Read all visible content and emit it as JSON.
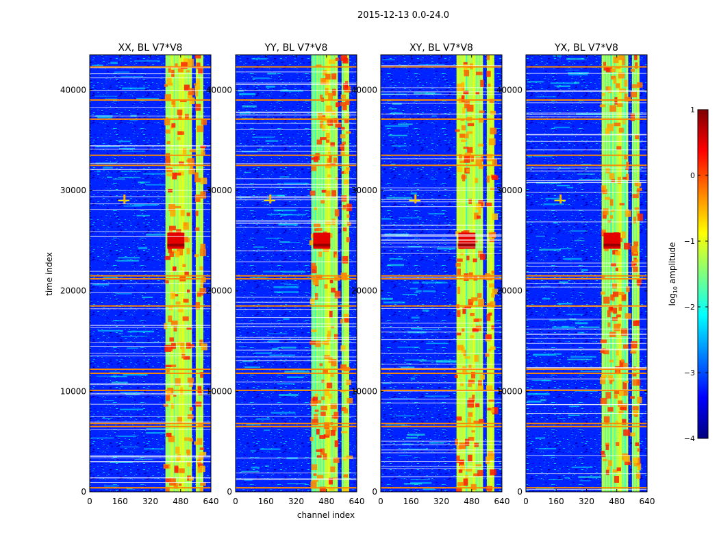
{
  "figure": {
    "suptitle": "2015-12-13 0.0-24.0",
    "xlabel": "channel index",
    "ylabel": "time index"
  },
  "colorbar": {
    "label_prefix": "log",
    "label_sub": "10",
    "label_suffix": " amplitude",
    "ticks": [
      1,
      0,
      -1,
      -2,
      -3,
      -4
    ],
    "tick_labels": [
      "1",
      "0",
      "−1",
      "−2",
      "−3",
      "−4"
    ],
    "range": [
      -4,
      1
    ],
    "colormap": "jet",
    "stops": [
      "#00007f",
      "#0000ff",
      "#007fff",
      "#00ffff",
      "#7fff7f",
      "#ffff00",
      "#ff7f00",
      "#ff0000",
      "#7f0000"
    ]
  },
  "chart_data": [
    {
      "type": "heatmap",
      "title": "XX, BL V7*V8",
      "xlabel": "",
      "ylabel": "time index",
      "xlim": [
        0,
        640
      ],
      "ylim": [
        0,
        43500
      ],
      "xticks": [
        0,
        160,
        320,
        480,
        640
      ],
      "yticks": [
        0,
        10000,
        20000,
        30000,
        40000
      ],
      "xtick_labels": [
        "0",
        "160",
        "320",
        "480",
        "640"
      ],
      "ytick_labels": [
        "0",
        "10000",
        "20000",
        "30000",
        "40000"
      ],
      "value_range_log10": [
        -4,
        1
      ],
      "description_note": "",
      "bright_channel_bands": [
        [
          400,
          540
        ],
        [
          560,
          600
        ]
      ],
      "saturated_block": {
        "channels": [
          410,
          500
        ],
        "time": [
          24200,
          25800
        ]
      },
      "rfi_time_rows": [
        400,
        6500,
        6800,
        10100,
        11800,
        12200,
        18500,
        21200,
        21500,
        32500,
        33500,
        37100,
        39000,
        42300
      ]
    },
    {
      "type": "heatmap",
      "title": "YY, BL V7*V8",
      "xlabel": "channel index",
      "xlim": [
        0,
        640
      ],
      "ylim": [
        0,
        43500
      ],
      "xticks": [
        0,
        160,
        320,
        480,
        640
      ],
      "yticks": [
        0,
        10000,
        20000,
        30000,
        40000
      ],
      "xtick_labels": [
        "0",
        "160",
        "320",
        "480",
        "640"
      ],
      "ytick_labels": [
        "0",
        "10000",
        "20000",
        "30000",
        "40000"
      ],
      "value_range_log10": [
        -4,
        1
      ],
      "bright_channel_bands": [
        [
          400,
          540
        ],
        [
          560,
          600
        ]
      ],
      "saturated_block": {
        "channels": [
          410,
          500
        ],
        "time": [
          24200,
          25800
        ]
      },
      "rfi_time_rows": [
        400,
        6500,
        6800,
        10100,
        11800,
        12200,
        18500,
        21200,
        21500,
        32500,
        33500,
        37100,
        39000,
        42300
      ]
    },
    {
      "type": "heatmap",
      "title": "XY, BL V7*V8",
      "xlabel": "",
      "xlim": [
        0,
        640
      ],
      "ylim": [
        0,
        43500
      ],
      "xticks": [
        0,
        160,
        320,
        480,
        640
      ],
      "yticks": [
        0,
        10000,
        20000,
        30000,
        40000
      ],
      "xtick_labels": [
        "0",
        "160",
        "320",
        "480",
        "640"
      ],
      "ytick_labels": [
        "0",
        "10000",
        "20000",
        "30000",
        "40000"
      ],
      "value_range_log10": [
        -4,
        1
      ],
      "bright_channel_bands": [
        [
          400,
          540
        ],
        [
          560,
          600
        ]
      ],
      "saturated_block": {
        "channels": [
          410,
          500
        ],
        "time": [
          24200,
          25800
        ]
      },
      "rfi_time_rows": [
        400,
        6500,
        6800,
        10100,
        11800,
        12200,
        18500,
        21200,
        21500,
        32500,
        33500,
        37100,
        39000,
        42300
      ]
    },
    {
      "type": "heatmap",
      "title": "YX, BL V7*V8",
      "xlabel": "",
      "xlim": [
        0,
        640
      ],
      "ylim": [
        0,
        43500
      ],
      "xticks": [
        0,
        160,
        320,
        480,
        640
      ],
      "yticks": [
        0,
        10000,
        20000,
        30000,
        40000
      ],
      "xtick_labels": [
        "0",
        "160",
        "320",
        "480",
        "640"
      ],
      "ytick_labels": [
        "0",
        "10000",
        "20000",
        "30000",
        "40000"
      ],
      "value_range_log10": [
        -4,
        1
      ],
      "bright_channel_bands": [
        [
          400,
          540
        ],
        [
          560,
          600
        ]
      ],
      "saturated_block": {
        "channels": [
          410,
          500
        ],
        "time": [
          24200,
          25800
        ]
      },
      "rfi_time_rows": [
        400,
        6500,
        6800,
        10100,
        11800,
        12200,
        18500,
        21200,
        21500,
        32500,
        33500,
        37100,
        39000,
        42300
      ]
    }
  ]
}
